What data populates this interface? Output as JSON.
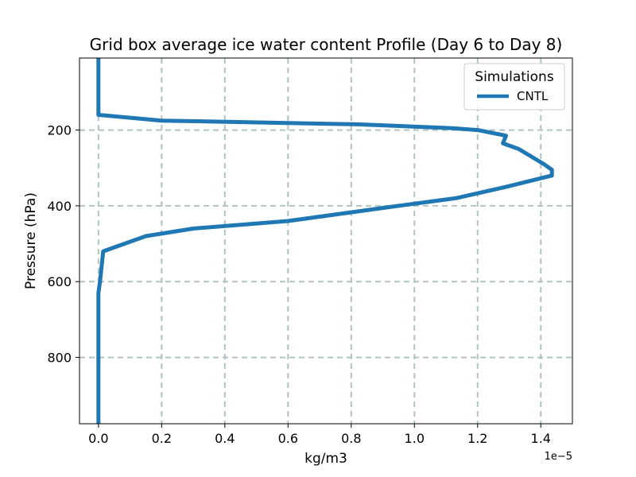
{
  "chart_data": {
    "type": "line",
    "title": "Grid box average ice water content Profile (Day 6 to Day 8)",
    "xlabel": "kg/m3",
    "ylabel": "Pressure (hPa)",
    "x_offset_label": "1e−5",
    "xlim": [
      -0.06,
      1.5
    ],
    "ylim": [
      975,
      10
    ],
    "y_inverted": true,
    "grid": true,
    "x_ticks": [
      0.0,
      0.2,
      0.4,
      0.6,
      0.8,
      1.0,
      1.2,
      1.4
    ],
    "x_tick_labels": [
      "0.0",
      "0.2",
      "0.4",
      "0.6",
      "0.8",
      "1.0",
      "1.2",
      "1.4"
    ],
    "y_ticks": [
      200,
      400,
      600,
      800
    ],
    "y_tick_labels": [
      "200",
      "400",
      "600",
      "800"
    ],
    "legend": {
      "title": "Simulations",
      "position": "top-right"
    },
    "series": [
      {
        "name": "CNTL",
        "color": "#1f77b4",
        "x": [
          0.0,
          0.0,
          0.0,
          0.2,
          0.82,
          1.12,
          1.2,
          1.29,
          1.28,
          1.33,
          1.37,
          1.41,
          1.435,
          1.435,
          1.29,
          1.13,
          0.95,
          0.6,
          0.3,
          0.15,
          0.015,
          0.01,
          0.005,
          0.0,
          0.0,
          0.0
        ],
        "y": [
          10,
          100,
          160,
          175,
          185,
          195,
          200,
          215,
          235,
          250,
          270,
          290,
          305,
          320,
          350,
          380,
          400,
          440,
          460,
          480,
          520,
          560,
          600,
          630,
          800,
          975
        ]
      }
    ]
  }
}
